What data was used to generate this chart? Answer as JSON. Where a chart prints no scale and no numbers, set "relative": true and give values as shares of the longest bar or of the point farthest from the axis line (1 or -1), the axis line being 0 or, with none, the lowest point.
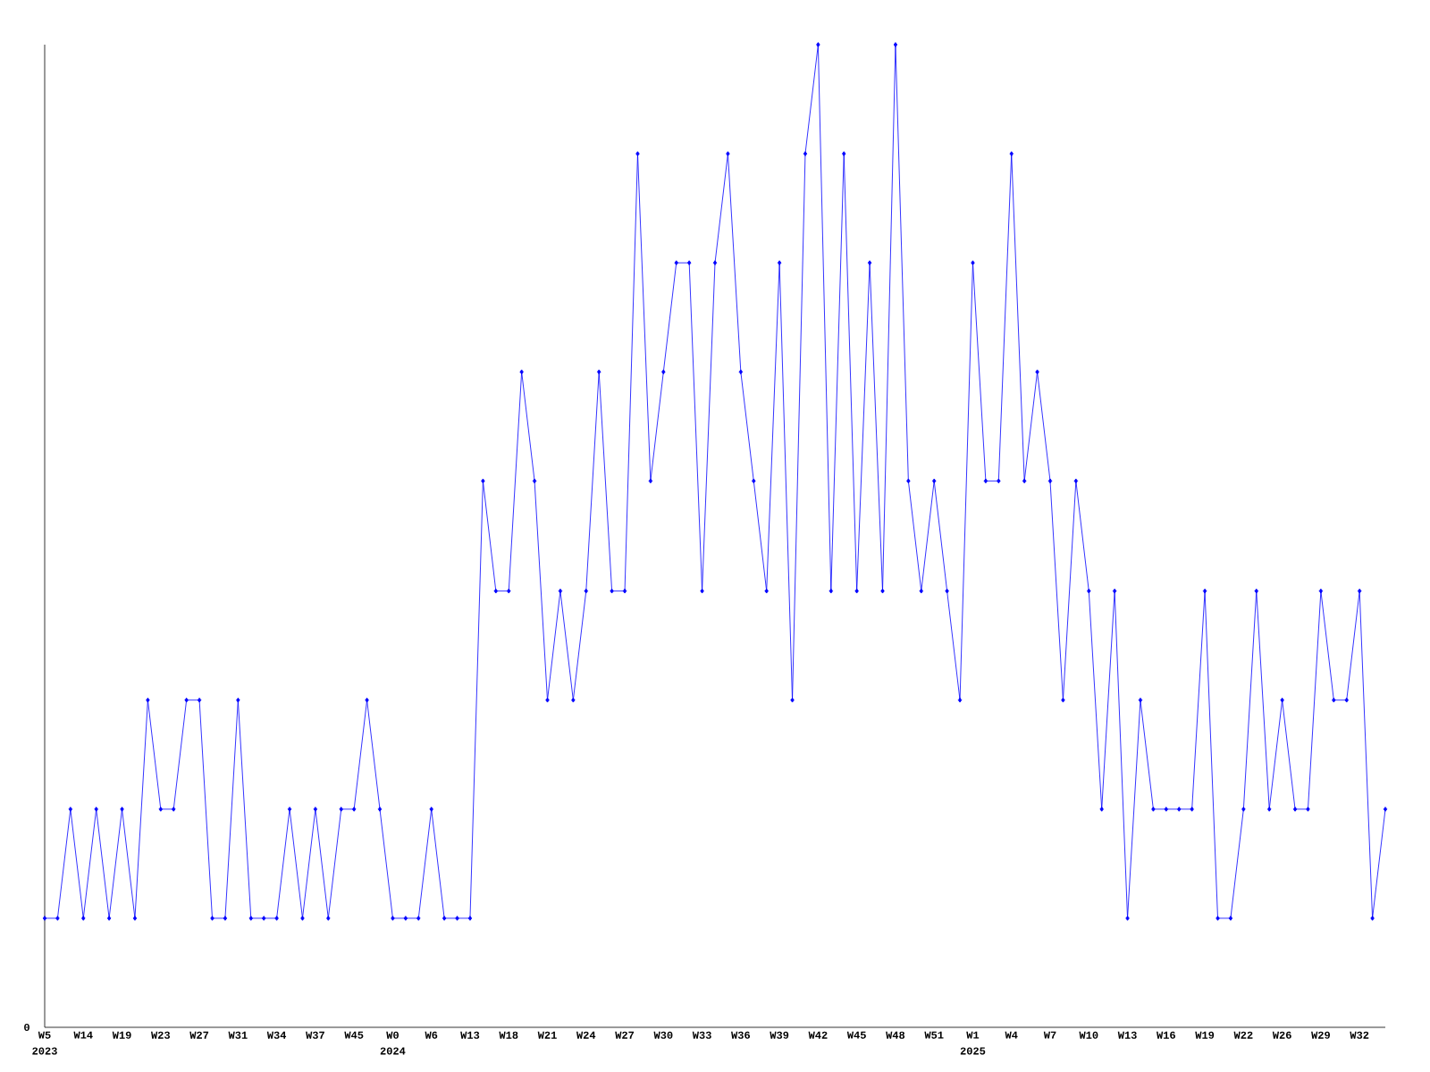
{
  "chart_data": {
    "type": "line",
    "relative": true,
    "color": "#0000ff",
    "marker": "diamond",
    "categories": [
      "W5",
      null,
      null,
      "W14",
      null,
      null,
      "W19",
      null,
      null,
      "W23",
      null,
      null,
      "W27",
      null,
      null,
      "W31",
      null,
      null,
      "W34",
      null,
      null,
      "W37",
      null,
      null,
      "W45",
      null,
      null,
      "W0",
      null,
      null,
      "W6",
      null,
      null,
      "W13",
      null,
      null,
      "W18",
      null,
      null,
      "W21",
      null,
      null,
      "W24",
      null,
      null,
      "W27",
      null,
      null,
      "W30",
      null,
      null,
      "W33",
      null,
      null,
      "W36",
      null,
      null,
      "W39",
      null,
      null,
      "W42",
      null,
      null,
      "W45",
      null,
      null,
      "W48",
      null,
      null,
      "W51",
      null,
      null,
      "W1",
      null,
      null,
      "W4",
      null,
      null,
      "W7",
      null,
      null,
      "W10",
      null,
      null,
      "W13",
      null,
      null,
      "W16",
      null,
      null,
      "W19",
      null,
      null,
      "W22",
      null,
      null,
      "W26",
      null,
      null,
      "W29",
      null,
      null,
      "W32",
      null,
      null
    ],
    "values": [
      0.111,
      0.111,
      0.222,
      0.111,
      0.222,
      0.111,
      0.222,
      0.111,
      0.333,
      0.222,
      0.222,
      0.333,
      0.333,
      0.111,
      0.111,
      0.333,
      0.111,
      0.111,
      0.111,
      0.222,
      0.111,
      0.222,
      0.111,
      0.222,
      0.222,
      0.333,
      0.222,
      0.111,
      0.111,
      0.111,
      0.222,
      0.111,
      0.111,
      0.111,
      0.556,
      0.444,
      0.444,
      0.667,
      0.556,
      0.333,
      0.444,
      0.333,
      0.444,
      0.667,
      0.444,
      0.444,
      0.889,
      0.556,
      0.667,
      0.778,
      0.778,
      0.444,
      0.778,
      0.889,
      0.667,
      0.556,
      0.444,
      0.778,
      0.333,
      0.889,
      1,
      0.444,
      0.889,
      0.444,
      0.778,
      0.444,
      1,
      0.556,
      0.444,
      0.556,
      0.444,
      0.333,
      0.778,
      0.556,
      0.556,
      0.889,
      0.556,
      0.667,
      0.556,
      0.333,
      0.556,
      0.444,
      0.222,
      0.444,
      0.111,
      0.333,
      0.222,
      0.222,
      0.222,
      0.222,
      0.444,
      0.111,
      0.111,
      0.222,
      0.444,
      0.222,
      0.333,
      0.222,
      0.222,
      0.444,
      0.333,
      0.333,
      0.444,
      0.111,
      0.222
    ],
    "annotations": [
      "0",
      "2023",
      "2024",
      "2025"
    ]
  }
}
